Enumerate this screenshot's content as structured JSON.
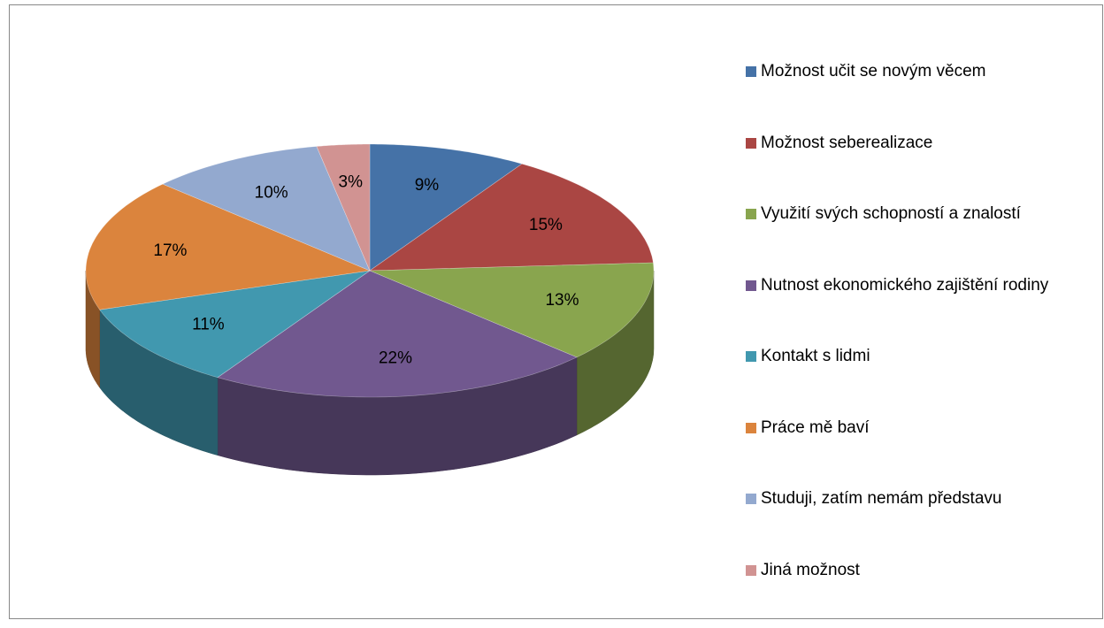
{
  "chart_data": {
    "type": "pie",
    "categories": [
      "Možnost učit se novým věcem",
      "Možnost seberealizace",
      "Využití svých schopností a znalostí",
      "Nutnost ekonomického zajištění rodiny",
      "Kontakt s lidmi",
      "Práce mě baví",
      "Studuji, zatím nemám představu",
      "Jiná možnost"
    ],
    "values": [
      9,
      15,
      13,
      22,
      11,
      17,
      10,
      3
    ],
    "value_labels": [
      "9%",
      "15%",
      "13%",
      "22%",
      "11%",
      "17%",
      "10%",
      "3%"
    ],
    "colors": [
      "#4572a7",
      "#aa4643",
      "#89a54e",
      "#71588f",
      "#4198af",
      "#db843d",
      "#93a9cf",
      "#d19392"
    ],
    "legend": "right"
  }
}
